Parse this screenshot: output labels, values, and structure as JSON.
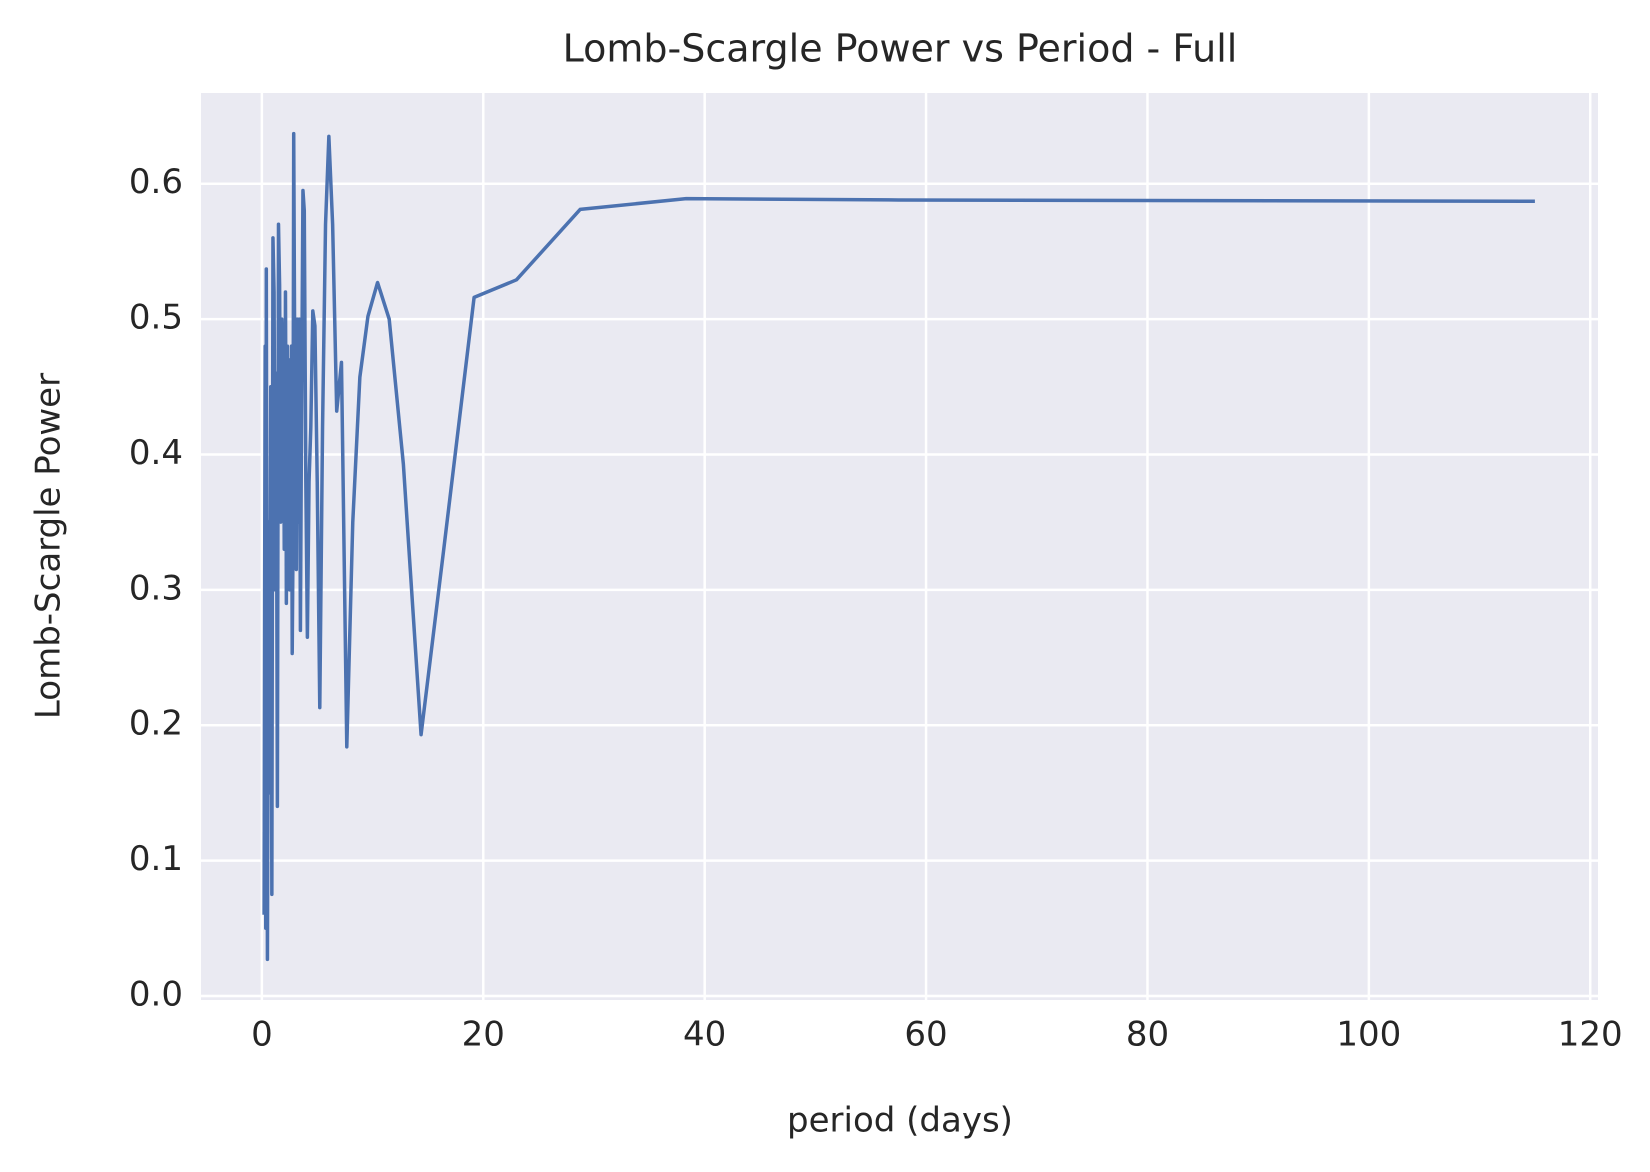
{
  "chart_data": {
    "type": "line",
    "title": "Lomb-Scargle Power vs Period - Full",
    "xlabel": "period (days)",
    "ylabel": "Lomb-Scargle Power",
    "x": [
      115,
      57.5,
      38.33,
      28.75,
      23,
      19.17,
      16.43,
      14.38,
      12.78,
      11.5,
      10.45,
      9.58,
      8.85,
      8.21,
      7.67,
      7.19,
      6.76,
      6.39,
      6.05,
      5.75,
      5.48,
      5.23,
      5.0,
      4.79,
      4.6,
      4.42,
      4.26,
      4.11,
      3.97,
      3.83,
      3.71,
      3.59,
      3.48,
      3.38,
      3.29,
      3.19,
      3.11,
      3.03,
      2.95,
      2.875,
      2.8,
      2.74,
      2.67,
      2.61,
      2.56,
      2.5,
      2.45,
      2.4,
      2.35,
      2.3,
      2.25,
      2.21,
      2.17,
      2.13,
      2.09,
      2.05,
      2.02,
      1.98,
      1.95,
      1.92,
      1.8,
      1.7,
      1.6,
      1.5,
      1.4,
      1.3,
      1.2,
      1.1,
      1.0,
      0.9,
      0.8,
      0.7,
      0.6,
      0.5,
      0.45,
      0.4,
      0.35,
      0.3,
      0.25,
      0.2
    ],
    "series": [
      {
        "name": "power",
        "color": "#4c72b0",
        "values": [
          0.587,
          0.588,
          0.589,
          0.581,
          0.529,
          0.516,
          0.33,
          0.193,
          0.393,
          0.5,
          0.527,
          0.502,
          0.457,
          0.35,
          0.184,
          0.468,
          0.432,
          0.57,
          0.635,
          0.57,
          0.42,
          0.213,
          0.38,
          0.495,
          0.506,
          0.42,
          0.38,
          0.265,
          0.38,
          0.58,
          0.595,
          0.44,
          0.27,
          0.5,
          0.35,
          0.5,
          0.315,
          0.48,
          0.5,
          0.637,
          0.32,
          0.253,
          0.48,
          0.36,
          0.47,
          0.3,
          0.41,
          0.45,
          0.32,
          0.48,
          0.4,
          0.29,
          0.44,
          0.52,
          0.38,
          0.47,
          0.33,
          0.41,
          0.36,
          0.45,
          0.5,
          0.35,
          0.525,
          0.57,
          0.14,
          0.46,
          0.3,
          0.52,
          0.56,
          0.075,
          0.45,
          0.15,
          0.35,
          0.027,
          0.3,
          0.537,
          0.05,
          0.48,
          0.31,
          0.06
        ]
      }
    ],
    "xlim": [
      -5.5,
      120.7
    ],
    "ylim": [
      -0.003,
      0.667
    ],
    "xticks": [
      0,
      20,
      40,
      60,
      80,
      100,
      120
    ],
    "yticks": [
      {
        "value": 0,
        "label": "0.0"
      },
      0.1,
      0.2,
      0.3,
      0.4,
      0.5,
      0.6
    ],
    "grid": true
  }
}
